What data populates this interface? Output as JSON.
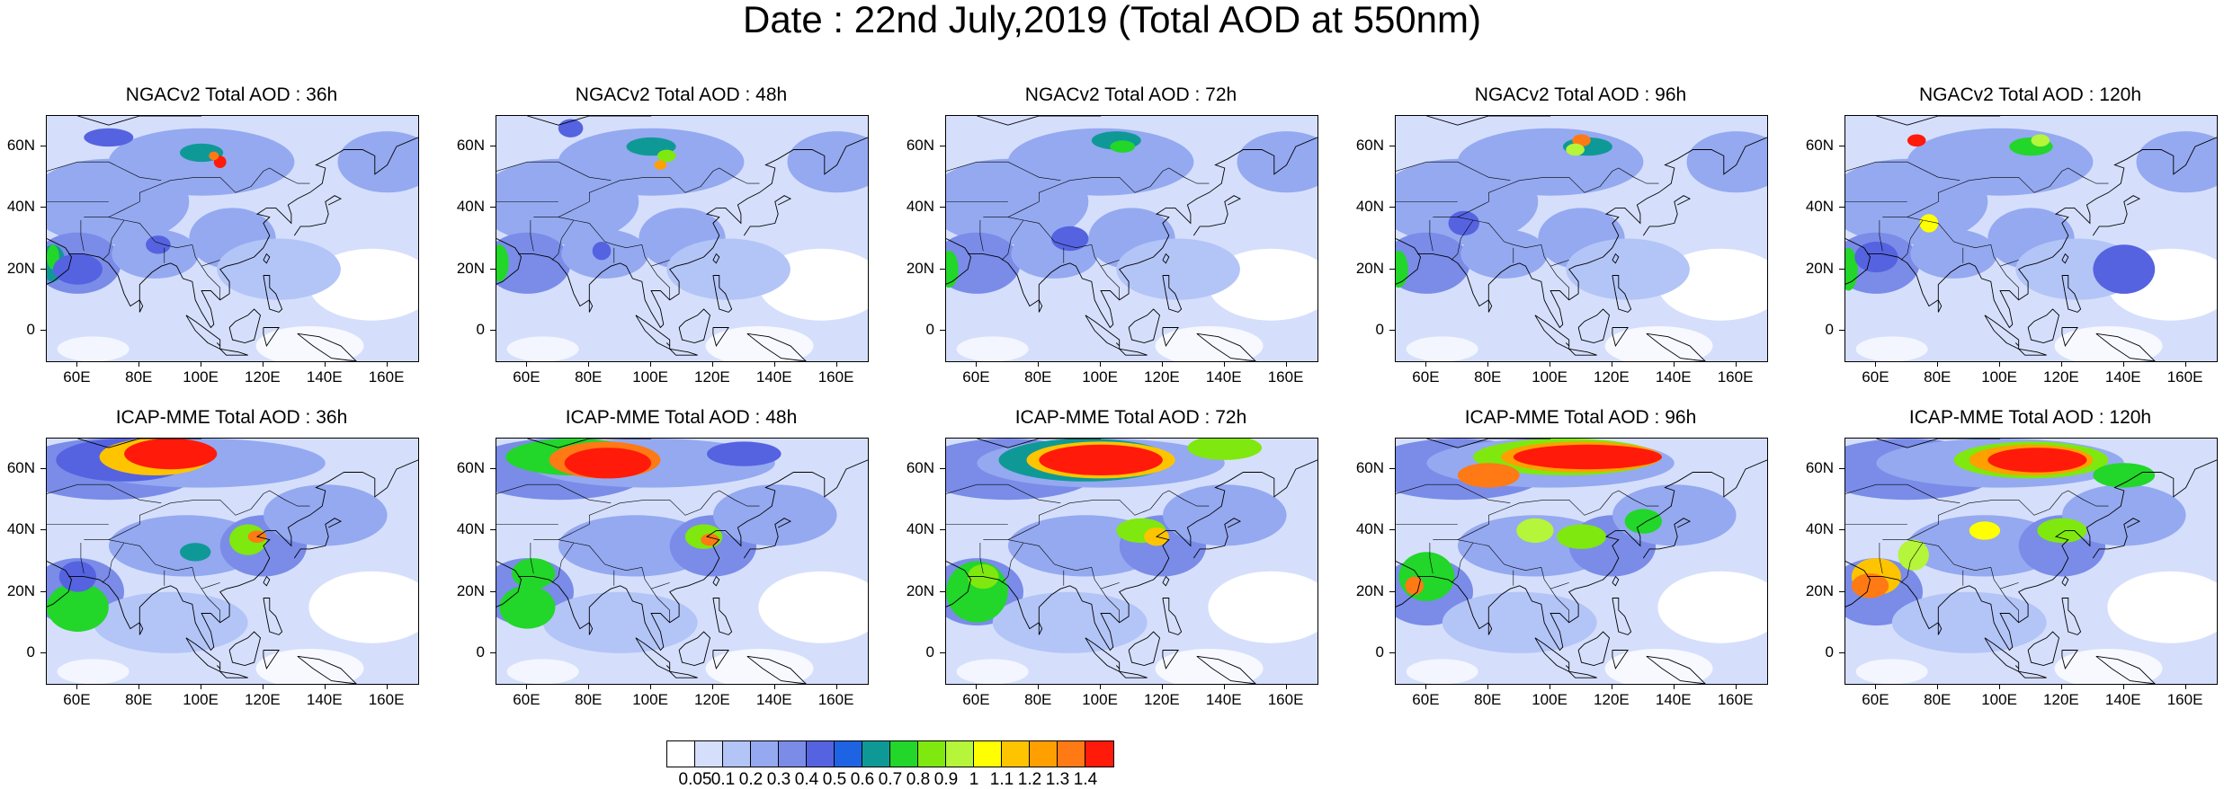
{
  "title": "Date : 22nd July,2019 (Total AOD at 550nm)",
  "panels": [
    {
      "title": "NGACv2 Total AOD : 36h",
      "model": "NGACv2",
      "lead": "36h"
    },
    {
      "title": "NGACv2 Total AOD : 48h",
      "model": "NGACv2",
      "lead": "48h"
    },
    {
      "title": "NGACv2 Total AOD : 72h",
      "model": "NGACv2",
      "lead": "72h"
    },
    {
      "title": "NGACv2 Total AOD : 96h",
      "model": "NGACv2",
      "lead": "96h"
    },
    {
      "title": "NGACv2 Total AOD : 120h",
      "model": "NGACv2",
      "lead": "120h"
    },
    {
      "title": "ICAP-MME Total AOD : 36h",
      "model": "ICAP-MME",
      "lead": "36h"
    },
    {
      "title": "ICAP-MME Total AOD : 48h",
      "model": "ICAP-MME",
      "lead": "48h"
    },
    {
      "title": "ICAP-MME Total AOD : 72h",
      "model": "ICAP-MME",
      "lead": "72h"
    },
    {
      "title": "ICAP-MME Total AOD : 96h",
      "model": "ICAP-MME",
      "lead": "96h"
    },
    {
      "title": "ICAP-MME Total AOD : 120h",
      "model": "ICAP-MME",
      "lead": "120h"
    }
  ],
  "axes": {
    "lat_ticks": [
      "60N",
      "40N",
      "20N",
      "0"
    ],
    "lon_ticks": [
      "60E",
      "80E",
      "100E",
      "120E",
      "140E",
      "160E"
    ]
  },
  "colorbar": {
    "labels": [
      "0.05",
      "0.1",
      "0.2",
      "0.3",
      "0.4",
      "0.5",
      "0.6",
      "0.7",
      "0.8",
      "0.9",
      "1",
      "1.1",
      "1.2",
      "1.3",
      "1.4"
    ],
    "colors": [
      "#ffffff",
      "#d5dffc",
      "#b3c4f7",
      "#94a9f0",
      "#7a8ce8",
      "#5563e0",
      "#1e63e3",
      "#0f9996",
      "#22d62a",
      "#7fe80e",
      "#b5f53a",
      "#ffff00",
      "#ffc400",
      "#ffa000",
      "#ff7a14",
      "#ff1a0a"
    ]
  }
}
